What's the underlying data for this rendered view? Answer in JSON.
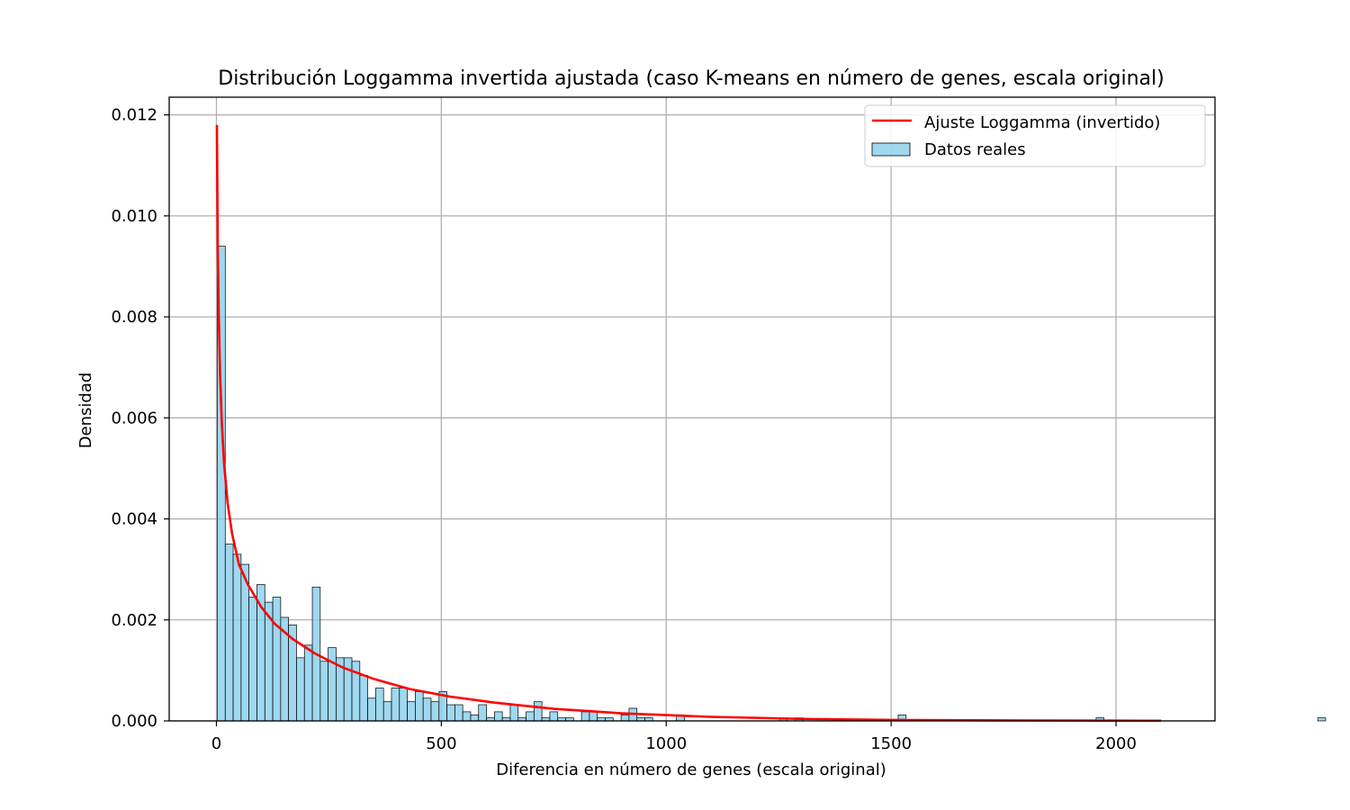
{
  "chart_data": {
    "type": "bar",
    "title": "Distribución Loggamma invertida ajustada (caso K-means en número de genes, escala original)",
    "xlabel": "Diferencia en número de genes (escala original)",
    "ylabel": "Densidad",
    "xlim": [
      -105,
      2220
    ],
    "ylim": [
      0,
      0.01235
    ],
    "x_ticks": [
      0,
      500,
      1000,
      1500,
      2000
    ],
    "x_tick_labels": [
      "0",
      "500",
      "1000",
      "1500",
      "2000"
    ],
    "y_ticks": [
      0,
      0.002,
      0.004,
      0.006,
      0.008,
      0.01,
      0.012
    ],
    "y_tick_labels": [
      "0.000",
      "0.002",
      "0.004",
      "0.006",
      "0.008",
      "0.010",
      "0.012"
    ],
    "grid": true,
    "legend_position": "upper-right",
    "colors": {
      "bars": "#87ceeb",
      "bar_edge": "#000000",
      "fit_line": "#ff0000",
      "grid": "#b0b0b0"
    },
    "series": [
      {
        "name": "Datos reales",
        "kind": "histogram",
        "bin_start": 2,
        "bin_width": 17.6,
        "densities": [
          0.0094,
          0.0035,
          0.0033,
          0.0031,
          0.00245,
          0.0027,
          0.00235,
          0.00245,
          0.00205,
          0.0019,
          0.00125,
          0.0015,
          0.00265,
          0.00118,
          0.00145,
          0.00125,
          0.00125,
          0.00118,
          0.0009,
          0.00045,
          0.00065,
          0.00038,
          0.00065,
          0.00065,
          0.00038,
          0.00058,
          0.00045,
          0.00038,
          0.00058,
          0.00032,
          0.00032,
          0.00018,
          0.00012,
          0.00032,
          6e-05,
          0.00018,
          6e-05,
          0.00032,
          6e-05,
          0.00018,
          0.00038,
          6e-05,
          0.00018,
          6e-05,
          6e-05,
          0.0,
          0.00018,
          0.00018,
          6e-05,
          6e-05,
          0.0,
          0.00012,
          0.00025,
          6e-05,
          6e-05,
          0.0,
          0.0,
          0.0,
          0.00012,
          0.0,
          0.0,
          0.0,
          0.0,
          0.0,
          0.0,
          0.0,
          0.0,
          0.0,
          0.0,
          0.0,
          0.0,
          6e-05,
          0.0,
          6e-05,
          0.0,
          0.0,
          0.0,
          0.0,
          0.0,
          0.0,
          0.0,
          0.0,
          0.0,
          0.0,
          0.0,
          0.0,
          0.00012,
          0.0,
          0.0,
          0.0,
          0.0,
          0.0,
          0.0,
          0.0,
          0.0,
          0.0,
          0.0,
          0.0,
          0.0,
          0.0,
          0.0,
          0.0,
          0.0,
          0.0,
          0.0,
          0.0,
          0.0,
          0.0,
          0.0,
          0.0,
          0.0,
          6e-05,
          0.0,
          0.0,
          0.0,
          0.0,
          0.0,
          0.0,
          0.0,
          0.0,
          0.0,
          0.0,
          0.0,
          0.0,
          0.0,
          0.0,
          0.0,
          0.0,
          0.0,
          0.0,
          0.0,
          0.0,
          0.0,
          0.0,
          0.0,
          0.0,
          0.0,
          0.0,
          0.0,
          6e-05,
          0.0,
          0.0,
          0.0,
          0.0,
          0.0,
          0.0,
          0.0,
          0.0,
          0.0,
          0.0,
          0.0,
          0.0,
          0.0,
          0.0,
          0.0,
          0.0,
          0.0,
          0.0,
          0.0,
          0.0,
          0.0,
          6e-05,
          0.0,
          0.0,
          0.0,
          6e-05,
          0.0,
          0.0,
          0.0,
          0.0,
          0.0,
          0.0,
          0.0,
          0.0,
          0.0,
          0.0,
          0.0,
          0.0,
          0.0,
          0.0,
          0.0,
          0.0,
          0.0,
          0.0,
          0.0,
          0.0,
          0.0,
          0.0,
          0.0,
          0.0,
          0.0,
          0.0,
          0.0,
          0.0,
          0.0,
          0.0,
          0.0,
          0.0,
          0.0,
          0.0,
          0.0,
          0.0,
          0.0,
          0.0,
          0.0,
          0.0,
          0.0,
          0.0,
          0.0,
          0.0,
          0.0,
          0.0,
          0.0,
          0.0,
          0.0,
          0.0,
          0.0,
          0.0,
          0.0,
          0.0,
          0.0,
          0.0,
          0.0,
          6e-05,
          0.0,
          6e-05
        ]
      },
      {
        "name": "Ajuste Loggamma (invertido)",
        "kind": "line",
        "x": [
          1,
          3,
          5,
          8,
          12,
          17,
          25,
          35,
          50,
          70,
          100,
          130,
          170,
          220,
          280,
          350,
          430,
          520,
          620,
          750,
          900,
          1100,
          1300,
          1500,
          1750,
          2000,
          2100
        ],
        "y": [
          0.0118,
          0.0093,
          0.0081,
          0.0069,
          0.0059,
          0.0051,
          0.0043,
          0.0037,
          0.0031,
          0.0027,
          0.00225,
          0.00192,
          0.00162,
          0.00133,
          0.00106,
          0.00083,
          0.00063,
          0.00048,
          0.00036,
          0.00024,
          0.00015,
          8e-05,
          4e-05,
          2e-05,
          1e-05,
          5e-06,
          4e-06
        ]
      }
    ]
  }
}
